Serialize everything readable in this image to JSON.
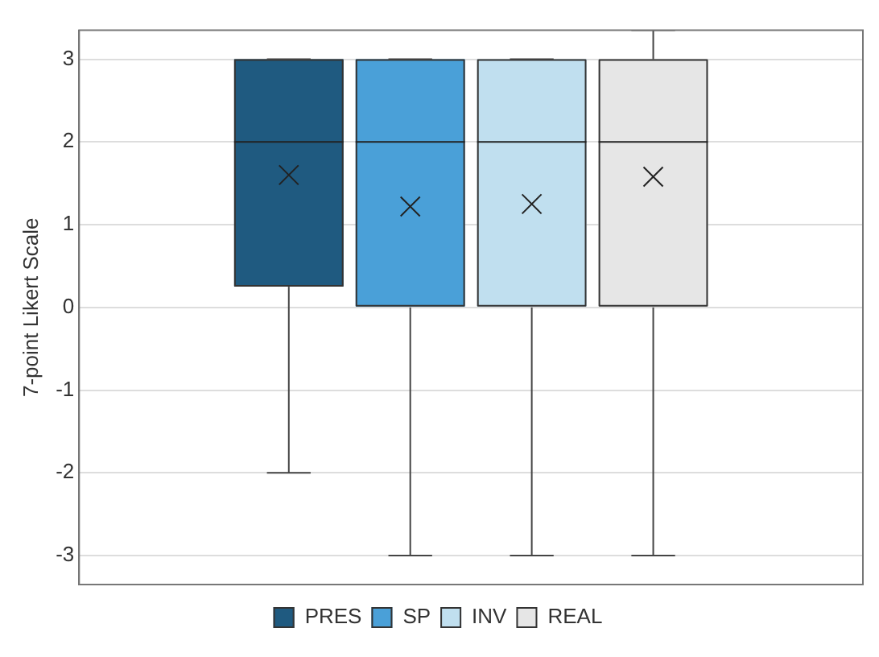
{
  "chart_data": {
    "type": "box",
    "ylabel": "7-point Likert Scale",
    "categories": [
      null
    ],
    "series": [
      {
        "name": "PRES",
        "color": "#1f5a80",
        "boxes": [
          {
            "low": -2,
            "q1": 0.25,
            "median": 2,
            "q3": 3,
            "high": 3,
            "mean": 1.6
          }
        ]
      },
      {
        "name": "SP",
        "color": "#4aa0d8",
        "boxes": [
          {
            "low": -3,
            "q1": 0,
            "median": 2,
            "q3": 3,
            "high": 3,
            "mean": 1.22
          }
        ]
      },
      {
        "name": "INV",
        "color": "#c0dfef",
        "boxes": [
          {
            "low": -3,
            "q1": 0,
            "median": 2,
            "q3": 3,
            "high": 3,
            "mean": 1.25
          }
        ]
      },
      {
        "name": "REAL",
        "color": "#e6e6e6",
        "boxes": [
          {
            "low": -3,
            "q1": 0,
            "median": 2,
            "q3": 3,
            "high": 3.35,
            "mean": 1.58
          }
        ]
      }
    ],
    "ylim": [
      -3.35,
      3.35
    ],
    "yticks": [
      -3,
      -2,
      -1,
      0,
      1,
      2,
      3
    ],
    "grid": "y",
    "legend": "bottom",
    "tick_labels": "y"
  }
}
